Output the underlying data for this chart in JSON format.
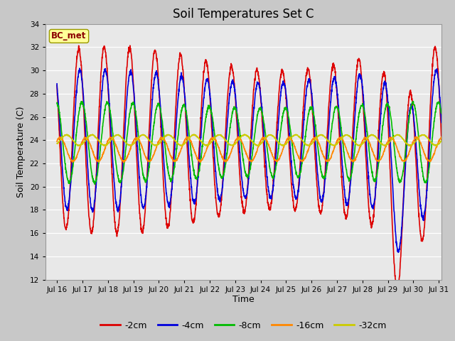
{
  "title": "Soil Temperatures Set C",
  "xlabel": "Time",
  "ylabel": "Soil Temperature (C)",
  "ylim": [
    12,
    34
  ],
  "xlim_days": [
    15.55,
    31.1
  ],
  "xtick_days": [
    16,
    17,
    18,
    19,
    20,
    21,
    22,
    23,
    24,
    25,
    26,
    27,
    28,
    29,
    30,
    31
  ],
  "xtick_labels": [
    "Jul 16",
    "Jul 17",
    "Jul 18",
    "Jul 19",
    "Jul 20",
    "Jul 21",
    "Jul 22",
    "Jul 23",
    "Jul 24",
    "Jul 25",
    "Jul 26",
    "Jul 27",
    "Jul 28",
    "Jul 29",
    "Jul 30",
    "Jul 31"
  ],
  "label_text": "BC_met",
  "series": [
    {
      "label": "-2cm",
      "color": "#dd0000",
      "amplitude": 7.0,
      "mean": 24.0,
      "phase_hours": 14.5
    },
    {
      "label": "-4cm",
      "color": "#0000dd",
      "amplitude": 5.5,
      "mean": 24.0,
      "phase_hours": 15.5
    },
    {
      "label": "-8cm",
      "color": "#00bb00",
      "amplitude": 3.2,
      "mean": 23.8,
      "phase_hours": 17.5
    },
    {
      "label": "-16cm",
      "color": "#ff8800",
      "amplitude": 1.0,
      "mean": 23.2,
      "phase_hours": 21.0
    },
    {
      "label": "-32cm",
      "color": "#cccc00",
      "amplitude": 0.45,
      "mean": 24.0,
      "phase_hours": 3.0
    }
  ],
  "fig_bg": "#c8c8c8",
  "plot_bg": "#e8e8e8",
  "linewidth": 1.2,
  "title_fontsize": 12,
  "axis_fontsize": 9,
  "tick_fontsize": 7.5,
  "legend_fontsize": 9
}
